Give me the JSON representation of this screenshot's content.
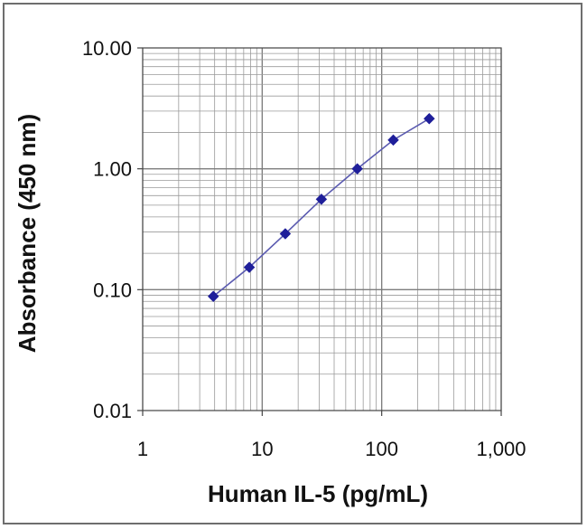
{
  "chart_data": {
    "type": "scatter",
    "title": "",
    "xlabel": "Human IL-5 (pg/mL)",
    "ylabel": "Absorbance (450 nm)",
    "xscale": "log",
    "yscale": "log",
    "xlim": [
      1,
      1000
    ],
    "ylim": [
      0.01,
      10
    ],
    "grid": true,
    "x_ticks": [
      "1",
      "10",
      "100",
      "1,000"
    ],
    "y_ticks": [
      "0.01",
      "0.10",
      "1.00",
      "10.00"
    ],
    "series": [
      {
        "x": [
          3.9,
          7.8,
          15.6,
          31.3,
          62.5,
          125,
          250
        ],
        "y": [
          0.088,
          0.153,
          0.29,
          0.56,
          1.0,
          1.73,
          2.6
        ],
        "color": "#1f1f9a",
        "line_color": "#5a5ab0",
        "marker": "diamond"
      }
    ]
  }
}
